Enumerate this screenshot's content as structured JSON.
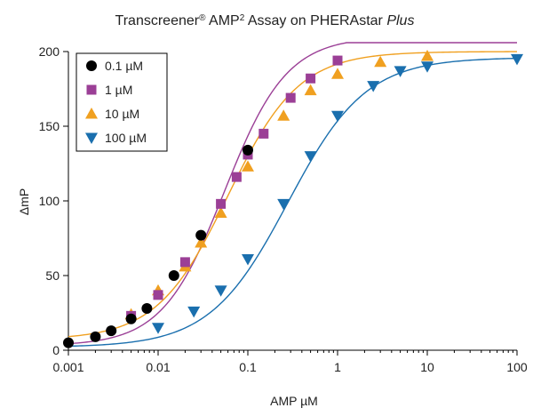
{
  "chart_data": {
    "type": "scatter",
    "title": {
      "main": "Transcreener",
      "reg": "®",
      "mid": " AMP",
      "sup": "2",
      "rest": " Assay on PHERAstar ",
      "italic": "Plus"
    },
    "xlabel": "AMP µM",
    "ylabel": "ΔmP",
    "x_scale": "log",
    "xlim": [
      0.001,
      100
    ],
    "ylim": [
      0,
      200
    ],
    "x_ticks": [
      0.001,
      0.01,
      0.1,
      1,
      10,
      100
    ],
    "x_tick_labels": [
      "0.001",
      "0.01",
      "0.1",
      "1",
      "10",
      "100"
    ],
    "y_ticks": [
      0,
      50,
      100,
      150,
      200
    ],
    "y_tick_labels": [
      "0",
      "50",
      "100",
      "150",
      "200"
    ],
    "grid": false,
    "legend_position": "top-left",
    "series": [
      {
        "name": "0.1 µM",
        "marker": "circle",
        "color": "#000000",
        "fit": false,
        "x": [
          0.001,
          0.002,
          0.003,
          0.005,
          0.0075,
          0.015,
          0.03,
          0.1
        ],
        "y": [
          5,
          9,
          13,
          21,
          28,
          50,
          77,
          134
        ]
      },
      {
        "name": "1 µM",
        "marker": "square",
        "color": "#9b3f96",
        "fit": true,
        "fit_params": {
          "bottom": 3,
          "top": 210,
          "ec50": 0.055,
          "hill": 1.25
        },
        "x": [
          0.005,
          0.01,
          0.02,
          0.05,
          0.075,
          0.1,
          0.15,
          0.3,
          0.5,
          1
        ],
        "y": [
          23,
          37,
          59,
          98,
          116,
          131,
          145,
          169,
          182,
          194
        ]
      },
      {
        "name": "10 µM",
        "marker": "triangle-up",
        "color": "#f0a020",
        "fit": true,
        "fit_params": {
          "bottom": 7,
          "top": 200,
          "ec50": 0.06,
          "hill": 1.1
        },
        "x": [
          0.005,
          0.01,
          0.02,
          0.03,
          0.05,
          0.1,
          0.25,
          0.5,
          1,
          3,
          10
        ],
        "y": [
          24,
          40,
          56,
          72,
          92,
          123,
          157,
          174,
          185,
          193,
          197
        ]
      },
      {
        "name": "100 µM",
        "marker": "triangle-down",
        "color": "#1a6fae",
        "fit": true,
        "fit_params": {
          "bottom": 2,
          "top": 196,
          "ec50": 0.28,
          "hill": 1.0
        },
        "x": [
          0.01,
          0.025,
          0.05,
          0.1,
          0.25,
          0.5,
          1,
          2.5,
          5,
          10,
          100
        ],
        "y": [
          15,
          26,
          40,
          61,
          98,
          130,
          157,
          177,
          187,
          190,
          195
        ]
      }
    ]
  }
}
